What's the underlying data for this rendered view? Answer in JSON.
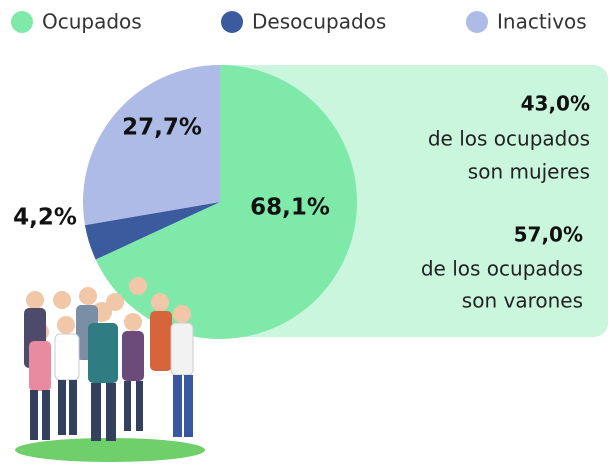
{
  "chart_data": {
    "type": "pie",
    "categories": [
      "Ocupados",
      "Desocupados",
      "Inactivos"
    ],
    "values": [
      68.1,
      4.2,
      27.7
    ],
    "value_labels": [
      "68,1%",
      "4,2%",
      "27,7%"
    ],
    "colors": [
      "#7fe9aa",
      "#3c5a9e",
      "#aebbe6"
    ],
    "annotations": [
      {
        "lines": [
          "43,0%",
          "de los ocupados",
          "son mujeres"
        ]
      },
      {
        "lines": [
          "57,0%",
          "de los ocupados",
          "son varones"
        ]
      }
    ]
  }
}
